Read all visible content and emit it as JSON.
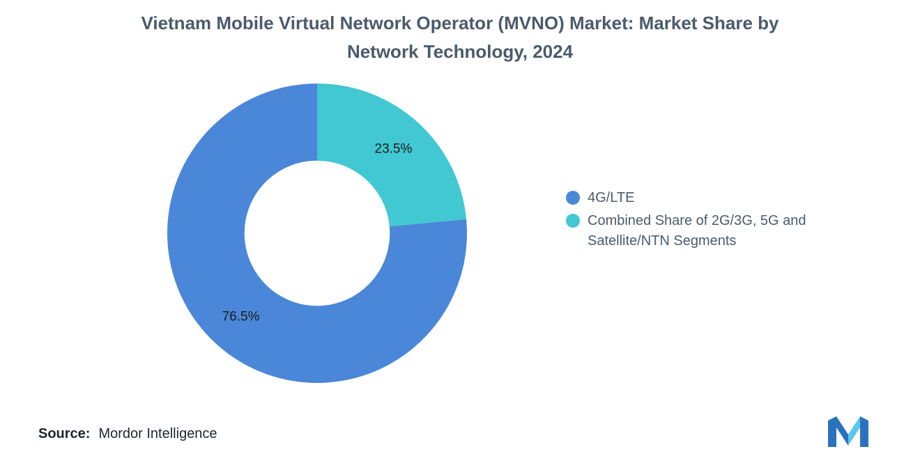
{
  "title": {
    "line1": "Vietnam Mobile Virtual Network Operator (MVNO) Market: Market Share by",
    "line2": "Network Technology, 2024"
  },
  "source": {
    "label": "Source:",
    "value": "Mordor Intelligence"
  },
  "branding": {
    "logo_name": "mordor-intelligence-logo",
    "logo_blue": "#2b72be",
    "logo_cyan": "#59c6ea"
  },
  "chart_data": {
    "type": "pie",
    "subtype": "donut",
    "title": "Vietnam Mobile Virtual Network Operator (MVNO) Market: Market Share by Network Technology, 2024",
    "inner_radius_ratio": 0.485,
    "start_angle_deg": 84.6,
    "direction": "clockwise",
    "legend_position": "right",
    "grid": false,
    "data_label_color": "#1b1b1b",
    "segments": [
      {
        "label": "4G/LTE",
        "value": 76.5,
        "data_label": "76.5%",
        "color": "#4a87d8"
      },
      {
        "label": "Combined Share of 2G/3G, 5G and Satellite/NTN Segments",
        "value": 23.5,
        "data_label": "23.5%",
        "color": "#41c8d2"
      }
    ]
  }
}
